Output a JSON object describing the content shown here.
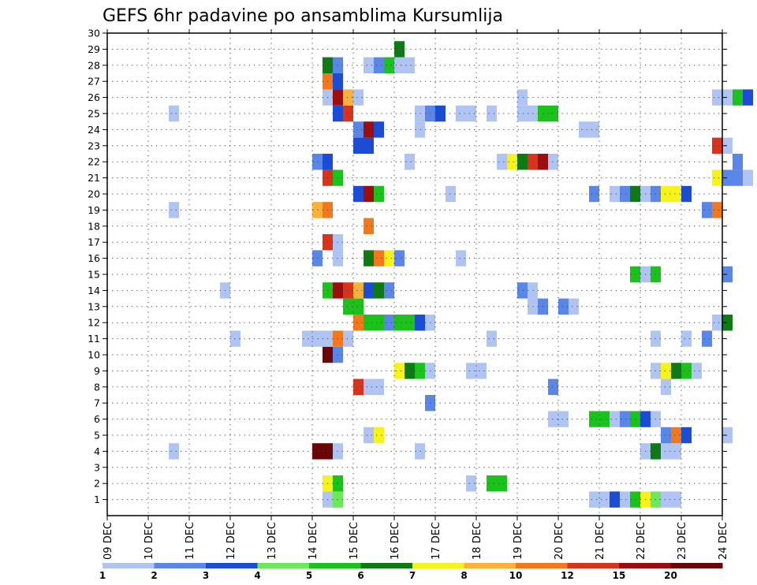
{
  "chart_data": {
    "type": "heatmap",
    "title": "GEFS 6hr padavine po ansamblima Kursumlija",
    "xlabel": "",
    "ylabel": "",
    "x_tick_labels": [
      "09 DEC",
      "10 DEC",
      "11 DEC",
      "12 DEC",
      "13 DEC",
      "14 DEC",
      "15 DEC",
      "16 DEC",
      "17 DEC",
      "18 DEC",
      "19 DEC",
      "20 DEC",
      "21 DEC",
      "22 DEC",
      "23 DEC",
      "24 DEC"
    ],
    "y_tick_labels": [
      "1",
      "2",
      "3",
      "4",
      "5",
      "6",
      "7",
      "8",
      "9",
      "10",
      "11",
      "12",
      "13",
      "14",
      "15",
      "16",
      "17",
      "18",
      "19",
      "20",
      "21",
      "22",
      "23",
      "24",
      "25",
      "26",
      "27",
      "28",
      "29",
      "30"
    ],
    "x_range_days": [
      0,
      15
    ],
    "y_range": [
      0,
      30
    ],
    "grid": true,
    "time_step_hours": 6,
    "colorbar_labels": [
      "1",
      "2",
      "3",
      "4",
      "5",
      "6",
      "7",
      "8",
      "10",
      "12",
      "15",
      "20"
    ],
    "colorbar_colors": [
      "#afc4f2",
      "#5a86e8",
      "#1a4cd6",
      "#6ee85a",
      "#1cc21c",
      "#0e7a14",
      "#f7f21c",
      "#f9b13a",
      "#f1781c",
      "#d8341c",
      "#9c0e0e",
      "#690606"
    ],
    "cells": [
      [
        1,
        1,
        5.25,
        5.5
      ],
      [
        1,
        4,
        5.5,
        5.75
      ],
      [
        1,
        1,
        11.75,
        12.25
      ],
      [
        1,
        3,
        12.25,
        12.5
      ],
      [
        1,
        1,
        12.5,
        12.75
      ],
      [
        1,
        5,
        12.75,
        13.0
      ],
      [
        1,
        7,
        13.0,
        13.25
      ],
      [
        1,
        4,
        13.25,
        13.5
      ],
      [
        1,
        1,
        13.5,
        14.0
      ],
      [
        2,
        7,
        5.25,
        5.5
      ],
      [
        2,
        5,
        5.5,
        5.75
      ],
      [
        2,
        1,
        8.75,
        9.0
      ],
      [
        2,
        5,
        9.25,
        9.75
      ],
      [
        4,
        20,
        5.0,
        5.5
      ],
      [
        4,
        1,
        5.5,
        5.75
      ],
      [
        4,
        1,
        1.5,
        1.75
      ],
      [
        4,
        1,
        7.5,
        7.75
      ],
      [
        4,
        1,
        13.0,
        13.25
      ],
      [
        4,
        6,
        13.25,
        13.5
      ],
      [
        4,
        1,
        13.5,
        14.0
      ],
      [
        5,
        1,
        6.25,
        6.5
      ],
      [
        5,
        7,
        6.5,
        6.75
      ],
      [
        5,
        2,
        13.5,
        13.75
      ],
      [
        5,
        10,
        13.75,
        14.0
      ],
      [
        5,
        3,
        14.0,
        14.25
      ],
      [
        5,
        1,
        15.0,
        15.25
      ],
      [
        6,
        1,
        10.75,
        11.25
      ],
      [
        6,
        5,
        11.75,
        12.25
      ],
      [
        6,
        1,
        12.25,
        12.5
      ],
      [
        6,
        2,
        12.5,
        12.75
      ],
      [
        6,
        5,
        12.75,
        13.0
      ],
      [
        6,
        3,
        13.0,
        13.25
      ],
      [
        6,
        1,
        13.25,
        13.5
      ],
      [
        7,
        2,
        7.75,
        8.0
      ],
      [
        8,
        12,
        6.0,
        6.25
      ],
      [
        8,
        1,
        6.25,
        6.75
      ],
      [
        8,
        2,
        10.75,
        11.0
      ],
      [
        8,
        1,
        13.5,
        13.75
      ],
      [
        9,
        7,
        7.0,
        7.25
      ],
      [
        9,
        6,
        7.25,
        7.5
      ],
      [
        9,
        5,
        7.5,
        7.75
      ],
      [
        9,
        1,
        7.75,
        8.0
      ],
      [
        9,
        1,
        8.75,
        9.25
      ],
      [
        9,
        1,
        13.25,
        13.5
      ],
      [
        9,
        7,
        13.5,
        13.75
      ],
      [
        9,
        6,
        13.75,
        14.0
      ],
      [
        9,
        5,
        14.0,
        14.25
      ],
      [
        9,
        1,
        14.25,
        14.5
      ],
      [
        10,
        20,
        5.25,
        5.5
      ],
      [
        10,
        2,
        5.5,
        5.75
      ],
      [
        11,
        1,
        3.0,
        3.25
      ],
      [
        11,
        1,
        4.75,
        5.5
      ],
      [
        11,
        10,
        5.5,
        5.75
      ],
      [
        11,
        1,
        5.75,
        6.0
      ],
      [
        11,
        1,
        9.25,
        9.5
      ],
      [
        11,
        1,
        13.25,
        13.5
      ],
      [
        11,
        1,
        14.0,
        14.25
      ],
      [
        11,
        2,
        14.5,
        14.75
      ],
      [
        12,
        10,
        6.0,
        6.25
      ],
      [
        12,
        5,
        6.25,
        6.75
      ],
      [
        12,
        2,
        6.75,
        7.0
      ],
      [
        12,
        5,
        7.0,
        7.5
      ],
      [
        12,
        3,
        7.5,
        7.75
      ],
      [
        12,
        1,
        7.75,
        8.0
      ],
      [
        12,
        1,
        14.75,
        15.0
      ],
      [
        12,
        6,
        15.0,
        15.25
      ],
      [
        13,
        5,
        5.75,
        6.25
      ],
      [
        13,
        1,
        10.25,
        10.5
      ],
      [
        13,
        2,
        10.5,
        10.75
      ],
      [
        13,
        2,
        11.0,
        11.25
      ],
      [
        13,
        1,
        11.25,
        11.5
      ],
      [
        14,
        1,
        2.75,
        3.0
      ],
      [
        14,
        5,
        5.25,
        5.5
      ],
      [
        14,
        15,
        5.5,
        5.75
      ],
      [
        14,
        12,
        5.75,
        6.0
      ],
      [
        14,
        8,
        6.0,
        6.25
      ],
      [
        14,
        3,
        6.25,
        6.5
      ],
      [
        14,
        6,
        6.5,
        6.75
      ],
      [
        14,
        2,
        6.75,
        7.0
      ],
      [
        14,
        2,
        10.0,
        10.25
      ],
      [
        14,
        1,
        10.25,
        10.5
      ],
      [
        15,
        5,
        12.75,
        13.0
      ],
      [
        15,
        1,
        13.0,
        13.25
      ],
      [
        15,
        5,
        13.25,
        13.5
      ],
      [
        15,
        2,
        15.0,
        15.25
      ],
      [
        16,
        2,
        5.0,
        5.25
      ],
      [
        16,
        1,
        5.5,
        5.75
      ],
      [
        16,
        6,
        6.25,
        6.5
      ],
      [
        16,
        10,
        6.5,
        6.75
      ],
      [
        16,
        7,
        6.75,
        7.0
      ],
      [
        16,
        2,
        7.0,
        7.25
      ],
      [
        16,
        1,
        8.5,
        8.75
      ],
      [
        17,
        12,
        5.25,
        5.5
      ],
      [
        17,
        1,
        5.5,
        5.75
      ],
      [
        18,
        10,
        6.25,
        6.5
      ],
      [
        19,
        8,
        5.0,
        5.25
      ],
      [
        19,
        10,
        5.25,
        5.5
      ],
      [
        19,
        1,
        1.5,
        1.75
      ],
      [
        19,
        2,
        14.5,
        14.75
      ],
      [
        19,
        10,
        14.75,
        15.0
      ],
      [
        20,
        3,
        6.0,
        6.25
      ],
      [
        20,
        15,
        6.25,
        6.5
      ],
      [
        20,
        5,
        6.5,
        6.75
      ],
      [
        20,
        1,
        8.25,
        8.5
      ],
      [
        20,
        2,
        11.75,
        12.0
      ],
      [
        20,
        1,
        12.25,
        12.5
      ],
      [
        20,
        2,
        12.5,
        12.75
      ],
      [
        20,
        6,
        12.75,
        13.0
      ],
      [
        20,
        1,
        13.0,
        13.25
      ],
      [
        20,
        2,
        13.25,
        13.5
      ],
      [
        20,
        7,
        13.5,
        14.0
      ],
      [
        20,
        3,
        14.0,
        14.25
      ],
      [
        21,
        12,
        5.25,
        5.5
      ],
      [
        21,
        5,
        5.5,
        5.75
      ],
      [
        21,
        7,
        14.75,
        15.0
      ],
      [
        21,
        2,
        15.0,
        15.5
      ],
      [
        21,
        1,
        15.5,
        15.75
      ],
      [
        22,
        2,
        5.0,
        5.25
      ],
      [
        22,
        3,
        5.25,
        5.5
      ],
      [
        22,
        1,
        7.25,
        7.5
      ],
      [
        22,
        1,
        9.5,
        9.75
      ],
      [
        22,
        7,
        9.75,
        10.0
      ],
      [
        22,
        6,
        10.0,
        10.25
      ],
      [
        22,
        12,
        10.25,
        10.5
      ],
      [
        22,
        15,
        10.5,
        10.75
      ],
      [
        22,
        1,
        10.75,
        11.0
      ],
      [
        22,
        2,
        15.25,
        15.5
      ],
      [
        23,
        3,
        6.0,
        6.5
      ],
      [
        23,
        12,
        14.75,
        15.0
      ],
      [
        23,
        1,
        15.0,
        15.25
      ],
      [
        24,
        2,
        6.0,
        6.25
      ],
      [
        24,
        15,
        6.25,
        6.5
      ],
      [
        24,
        3,
        6.5,
        6.75
      ],
      [
        24,
        1,
        7.5,
        7.75
      ],
      [
        24,
        1,
        11.5,
        12.0
      ],
      [
        25,
        3,
        5.5,
        5.75
      ],
      [
        25,
        12,
        5.75,
        6.0
      ],
      [
        25,
        1,
        7.5,
        7.75
      ],
      [
        25,
        2,
        7.75,
        8.0
      ],
      [
        25,
        3,
        8.0,
        8.25
      ],
      [
        25,
        1,
        8.5,
        9.0
      ],
      [
        25,
        1,
        9.25,
        9.5
      ],
      [
        25,
        1,
        10.0,
        10.5
      ],
      [
        25,
        5,
        10.5,
        11.0
      ],
      [
        25,
        1,
        1.5,
        1.75
      ],
      [
        26,
        1,
        5.25,
        5.5
      ],
      [
        26,
        15,
        5.5,
        5.75
      ],
      [
        26,
        8,
        5.75,
        6.0
      ],
      [
        26,
        1,
        6.0,
        6.25
      ],
      [
        26,
        1,
        10.0,
        10.25
      ],
      [
        26,
        1,
        14.75,
        15.25
      ],
      [
        26,
        5,
        15.25,
        15.5
      ],
      [
        26,
        3,
        15.5,
        15.75
      ],
      [
        27,
        10,
        5.25,
        5.5
      ],
      [
        27,
        3,
        5.5,
        5.75
      ],
      [
        28,
        6,
        5.25,
        5.5
      ],
      [
        28,
        2,
        5.5,
        5.75
      ],
      [
        28,
        1,
        6.25,
        6.5
      ],
      [
        28,
        2,
        6.5,
        6.75
      ],
      [
        28,
        5,
        6.75,
        7.0
      ],
      [
        28,
        1,
        7.0,
        7.5
      ],
      [
        29,
        6,
        7.0,
        7.25
      ]
    ]
  }
}
